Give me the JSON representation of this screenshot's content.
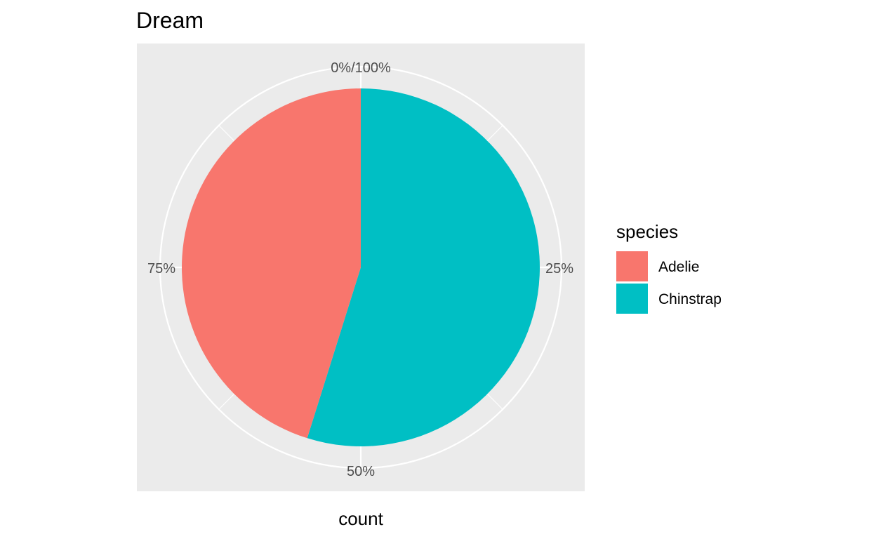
{
  "chart_data": {
    "type": "pie",
    "title": "Dream",
    "xlabel": "count",
    "ylabel": "",
    "tick_labels": [
      "0%/100%",
      "25%",
      "50%",
      "75%"
    ],
    "legend": {
      "title": "species",
      "position": "right"
    },
    "series": [
      {
        "name": "Adelie",
        "value": 56,
        "color": "#F8766D"
      },
      {
        "name": "Chinstrap",
        "value": 68,
        "color": "#00BFC4"
      }
    ],
    "grid": true,
    "panel_background": "#EBEBEB"
  }
}
